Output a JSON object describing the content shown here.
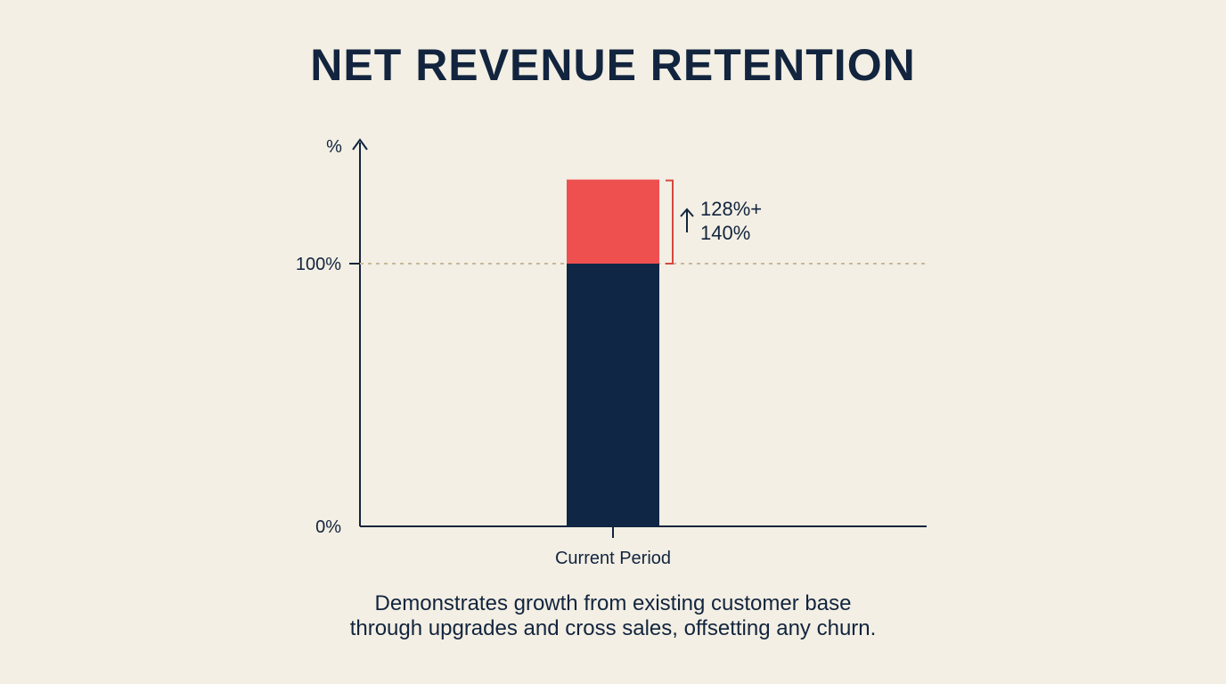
{
  "chart_data": {
    "type": "bar",
    "title": "NET REVENUE RETENTION",
    "ylabel": "%",
    "ylim": [
      0,
      150
    ],
    "yticks": [
      {
        "value": 0,
        "label": "0%"
      },
      {
        "value": 100,
        "label": "100%"
      }
    ],
    "categories": [
      "Current Period"
    ],
    "series": [
      {
        "values": [
          100
        ],
        "color": "#0f2745"
      },
      {
        "values": [
          32
        ],
        "color": "#ee5050"
      }
    ],
    "reference_line": {
      "value": 100,
      "style": "dotted",
      "color": "#c9b99a"
    },
    "annotation": {
      "arrow": "up",
      "lines": [
        "128%+",
        "140%"
      ],
      "bracket_color": "#d9463f",
      "range": [
        100,
        132
      ]
    },
    "grid": false,
    "legend": "none"
  },
  "caption": {
    "line1": "Demonstrates growth from existing customer base",
    "line2": "through upgrades and cross sales, offsetting any churn."
  },
  "colors": {
    "background": "#f3efe4",
    "text": "#12243e",
    "axis": "#12243e"
  }
}
